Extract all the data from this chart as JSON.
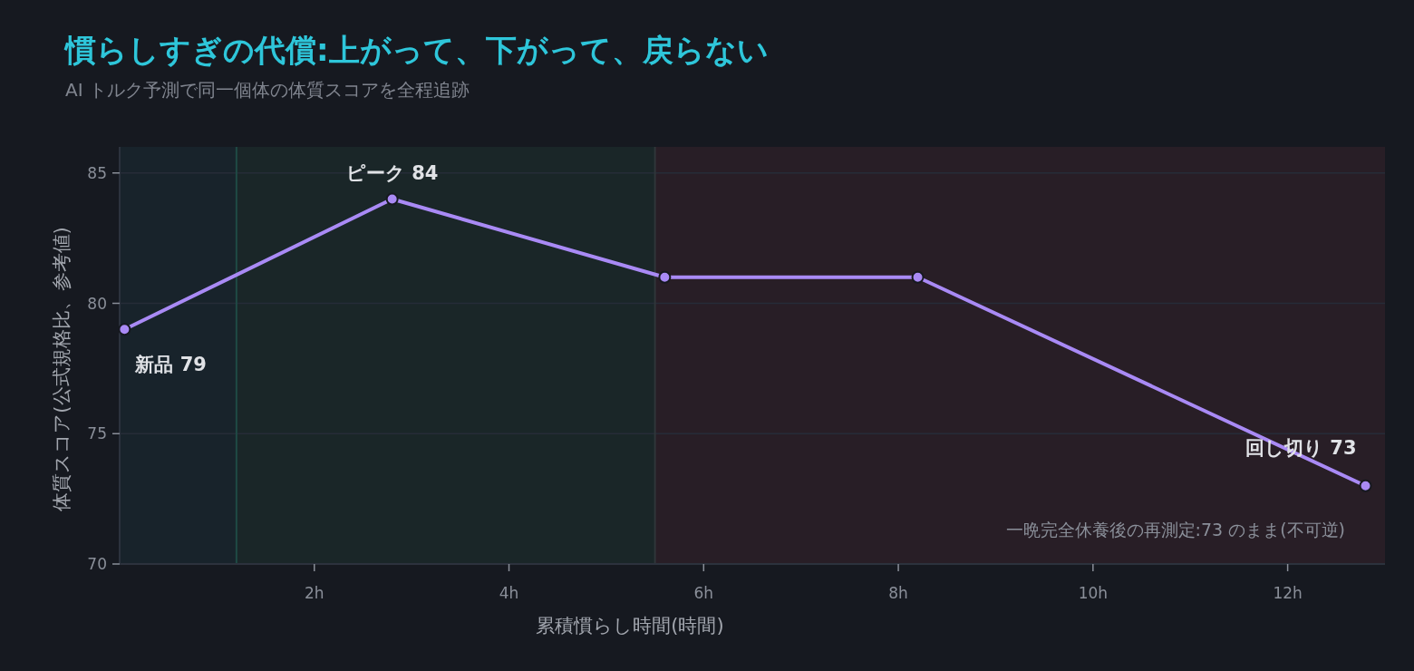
{
  "chart_data": {
    "type": "line",
    "title": "慣らしすぎの代償:上がって、下がって、戻らない",
    "subtitle": "AI トルク予測で同一個体の体質スコアを全程追跡",
    "xlabel": "累積慣らし時間(時間)",
    "ylabel": "体質スコア(公式規格比、参考値)",
    "x": [
      0.05,
      2.8,
      5.6,
      8.2,
      12.8
    ],
    "series": [
      {
        "color": "#a98af5",
        "values": [
          79,
          84,
          81,
          81,
          73
        ]
      }
    ],
    "xlim": [
      0,
      13
    ],
    "ylim": [
      70,
      86
    ],
    "xticks": [
      {
        "value": 2,
        "label": "2h"
      },
      {
        "value": 4,
        "label": "4h"
      },
      {
        "value": 6,
        "label": "6h"
      },
      {
        "value": 8,
        "label": "8h"
      },
      {
        "value": 10,
        "label": "10h"
      },
      {
        "value": 12,
        "label": "12h"
      }
    ],
    "yticks": [
      70,
      75,
      80,
      85
    ],
    "grid": "y",
    "marker": "circle",
    "line_style": "solid",
    "bands": [
      {
        "axis": "x",
        "from": 0,
        "to": 1.2,
        "color": "#18232b"
      },
      {
        "axis": "x",
        "from": 1.2,
        "to": 5.5,
        "color": "#1a2628"
      },
      {
        "axis": "x",
        "from": 5.5,
        "to": 13,
        "color": "#281e26"
      }
    ],
    "ref_lines": [
      {
        "axis": "x",
        "value": 1.2,
        "color": "#1f4a45"
      },
      {
        "axis": "x",
        "value": 5.5,
        "color": "#30363a"
      }
    ],
    "annotations": [
      {
        "text": "新品 79",
        "x": 0.05,
        "y": 79
      },
      {
        "text": "ピーク 84",
        "x": 2.8,
        "y": 84
      },
      {
        "text": "回し切り 73",
        "x": 12.8,
        "y": 73
      },
      "一晩完全休養後の再測定:73 のまま(不可逆)"
    ]
  }
}
